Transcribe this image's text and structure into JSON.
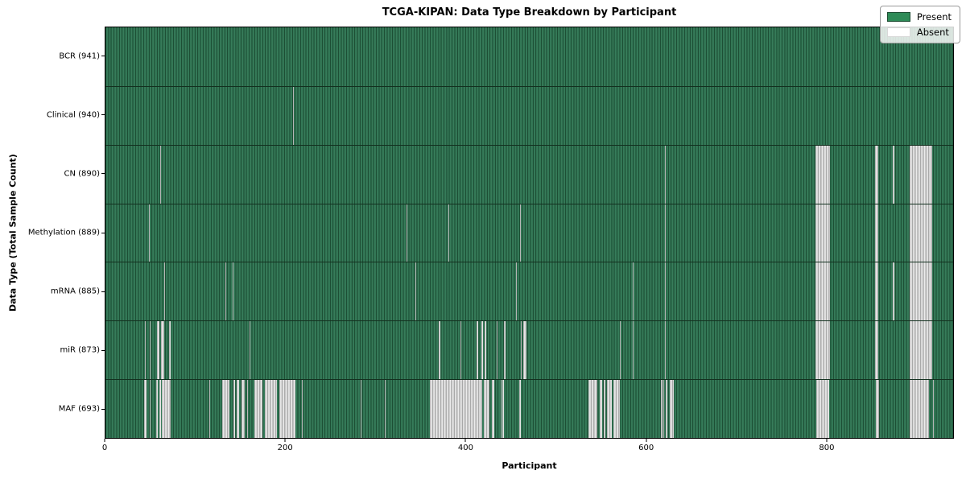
{
  "chart_data": {
    "type": "heatmap",
    "title": "TCGA-KIPAN: Data Type Breakdown by Participant",
    "xlabel": "Participant",
    "ylabel": "Data Type (Total Sample Count)",
    "xlim": [
      0,
      941
    ],
    "x_ticks": [
      0,
      200,
      400,
      600,
      800
    ],
    "grid": false,
    "legend_position": "upper right",
    "legend": [
      {
        "label": "Present",
        "color": "#2e8b57"
      },
      {
        "label": "Absent",
        "color": "#ffffff"
      }
    ],
    "colors": {
      "present": "#2e8b57",
      "present_edge": "#1d4f35",
      "absent": "#e8e8e8",
      "absent_edge": "#9a9a9a"
    },
    "rows": [
      {
        "label": "BCR (941)",
        "data_type": "BCR",
        "total_sample_count": 941,
        "absent_ranges": []
      },
      {
        "label": "Clinical (940)",
        "data_type": "Clinical",
        "total_sample_count": 940,
        "absent_ranges": [
          [
            208,
            209
          ]
        ]
      },
      {
        "label": "CN (890)",
        "data_type": "CN",
        "total_sample_count": 890,
        "absent_ranges": [
          [
            61,
            62
          ],
          [
            621,
            622
          ],
          [
            788,
            804
          ],
          [
            854,
            858
          ],
          [
            874,
            876
          ],
          [
            893,
            918
          ]
        ]
      },
      {
        "label": "Methylation (889)",
        "data_type": "Methylation",
        "total_sample_count": 889,
        "absent_ranges": [
          [
            48,
            49
          ],
          [
            334,
            335
          ],
          [
            381,
            382
          ],
          [
            460,
            461
          ],
          [
            621,
            622
          ],
          [
            788,
            804
          ],
          [
            854,
            858
          ],
          [
            893,
            918
          ]
        ]
      },
      {
        "label": "mRNA (885)",
        "data_type": "mRNA",
        "total_sample_count": 885,
        "absent_ranges": [
          [
            65,
            66
          ],
          [
            133,
            134
          ],
          [
            141,
            142
          ],
          [
            344,
            345
          ],
          [
            456,
            457
          ],
          [
            585,
            586
          ],
          [
            621,
            622
          ],
          [
            788,
            804
          ],
          [
            854,
            858
          ],
          [
            874,
            876
          ],
          [
            893,
            918
          ]
        ]
      },
      {
        "label": "miR (873)",
        "data_type": "miR",
        "total_sample_count": 873,
        "absent_ranges": [
          [
            44,
            45
          ],
          [
            49,
            50
          ],
          [
            57,
            60
          ],
          [
            62,
            65
          ],
          [
            71,
            72
          ],
          [
            160,
            161
          ],
          [
            370,
            372
          ],
          [
            394,
            395
          ],
          [
            412,
            414
          ],
          [
            417,
            419
          ],
          [
            421,
            423
          ],
          [
            434,
            435
          ],
          [
            442,
            444
          ],
          [
            461,
            462
          ],
          [
            464,
            467
          ],
          [
            571,
            572
          ],
          [
            585,
            586
          ],
          [
            621,
            622
          ],
          [
            788,
            804
          ],
          [
            854,
            858
          ],
          [
            893,
            918
          ]
        ]
      },
      {
        "label": "MAF (693)",
        "data_type": "MAF",
        "total_sample_count": 693,
        "absent_ranges": [
          [
            43,
            46
          ],
          [
            49,
            50
          ],
          [
            56,
            58
          ],
          [
            60,
            62
          ],
          [
            63,
            72
          ],
          [
            115,
            116
          ],
          [
            130,
            138
          ],
          [
            142,
            144
          ],
          [
            146,
            148
          ],
          [
            151,
            155
          ],
          [
            157,
            158
          ],
          [
            165,
            174
          ],
          [
            177,
            190
          ],
          [
            193,
            211
          ],
          [
            218,
            219
          ],
          [
            283,
            284
          ],
          [
            310,
            311
          ],
          [
            360,
            418
          ],
          [
            420,
            426
          ],
          [
            429,
            432
          ],
          [
            439,
            440
          ],
          [
            441,
            442
          ],
          [
            459,
            461
          ],
          [
            536,
            546
          ],
          [
            549,
            551
          ],
          [
            553,
            555
          ],
          [
            557,
            562
          ],
          [
            564,
            571
          ],
          [
            617,
            618
          ],
          [
            619,
            620
          ],
          [
            622,
            624
          ],
          [
            626,
            631
          ],
          [
            789,
            803
          ],
          [
            855,
            859
          ],
          [
            893,
            914
          ],
          [
            919,
            920
          ]
        ]
      }
    ]
  }
}
